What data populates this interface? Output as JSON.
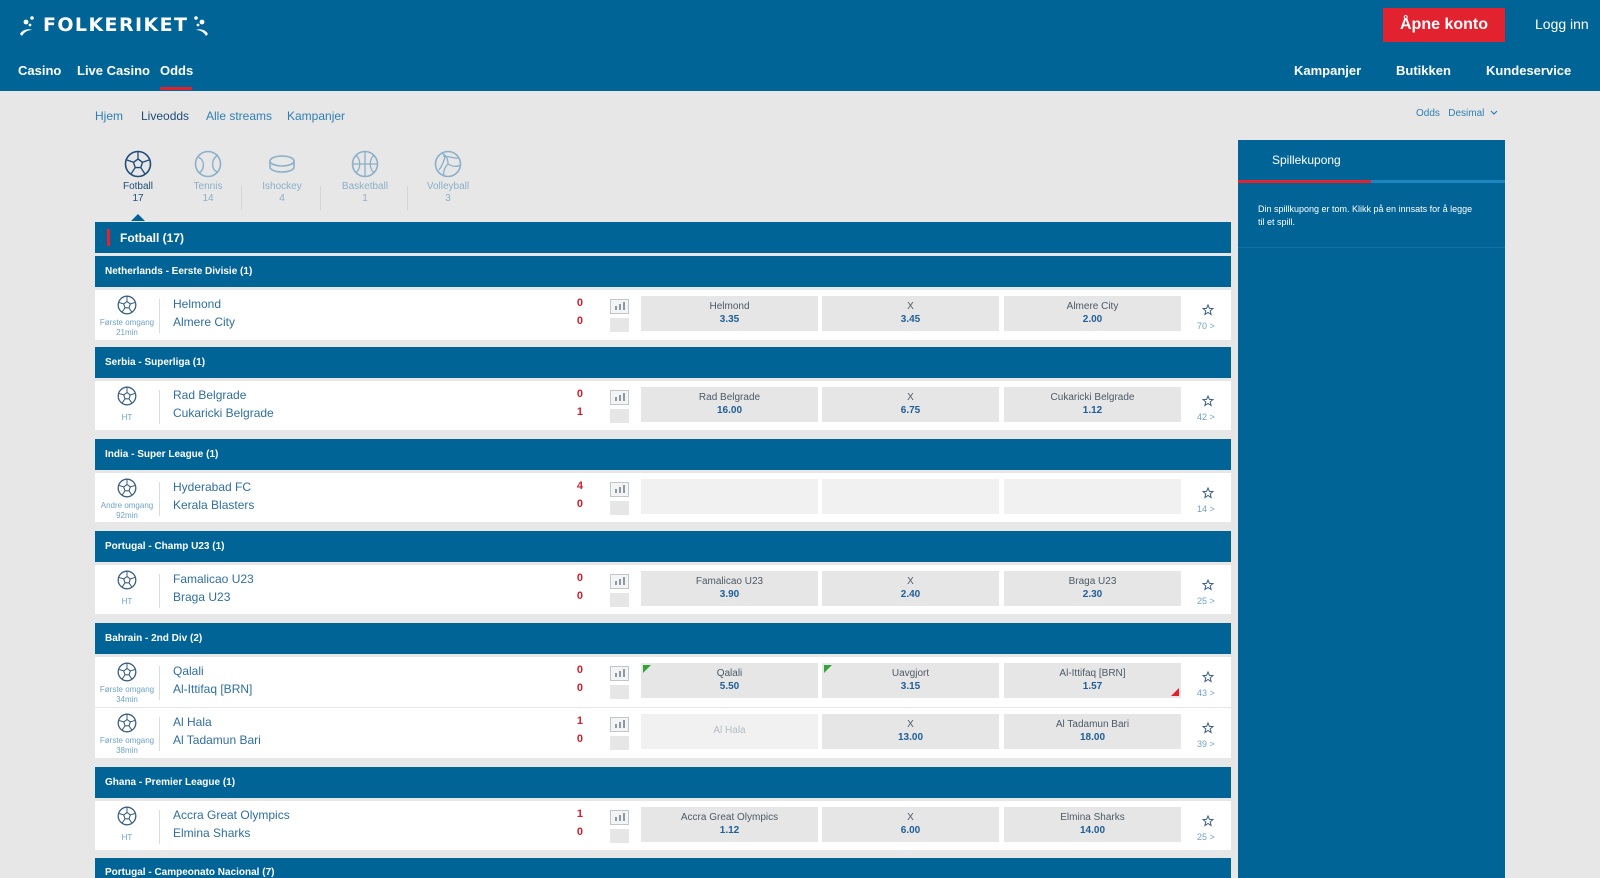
{
  "header": {
    "logo_text": "FOLKERIKET",
    "open_account": "Åpne konto",
    "login": "Logg inn",
    "nav_left": [
      "Casino",
      "Live Casino",
      "Odds"
    ],
    "nav_right": [
      "Kampanjer",
      "Butikken",
      "Kundeservice"
    ],
    "active_nav": "Odds"
  },
  "breadcrumb": [
    "Hjem",
    "Liveodds",
    "Alle streams",
    "Kampanjer"
  ],
  "odds_format": {
    "label": "Odds",
    "value": "Desimal"
  },
  "sports": [
    {
      "name": "Fotball",
      "count": "17",
      "icon": "football-icon",
      "active": true
    },
    {
      "name": "Tennis",
      "count": "14",
      "icon": "tennis-icon"
    },
    {
      "name": "Ishockey",
      "count": "4",
      "icon": "hockey-puck-icon"
    },
    {
      "name": "Basketball",
      "count": "1",
      "icon": "basketball-icon"
    },
    {
      "name": "Volleyball",
      "count": "3",
      "icon": "volleyball-icon"
    }
  ],
  "section_title": "Fotball  (17)",
  "leagues": [
    {
      "name": "Netherlands - Eerste Divisie (1)",
      "matches": [
        {
          "status": "Første omgang",
          "time": "21min",
          "home": "Helmond",
          "away": "Almere City",
          "home_score": "0",
          "away_score": "0",
          "odds": [
            {
              "label": "Helmond",
              "value": "3.35"
            },
            {
              "label": "X",
              "value": "3.45"
            },
            {
              "label": "Almere City",
              "value": "2.00"
            }
          ],
          "markets": "70"
        }
      ]
    },
    {
      "name": "Serbia - Superliga (1)",
      "matches": [
        {
          "status": "HT",
          "time": "",
          "home": "Rad Belgrade",
          "away": "Cukaricki Belgrade",
          "home_score": "0",
          "away_score": "1",
          "odds": [
            {
              "label": "Rad Belgrade",
              "value": "16.00"
            },
            {
              "label": "X",
              "value": "6.75"
            },
            {
              "label": "Cukaricki Belgrade",
              "value": "1.12"
            }
          ],
          "markets": "42"
        }
      ]
    },
    {
      "name": "India - Super League (1)",
      "matches": [
        {
          "status": "Andre omgang",
          "time": "92min",
          "home": "Hyderabad FC",
          "away": "Kerala Blasters",
          "home_score": "4",
          "away_score": "0",
          "odds": [],
          "markets": "14"
        }
      ]
    },
    {
      "name": "Portugal - Champ U23 (1)",
      "matches": [
        {
          "status": "HT",
          "time": "",
          "home": "Famalicao U23",
          "away": "Braga U23",
          "home_score": "0",
          "away_score": "0",
          "odds": [
            {
              "label": "Famalicao U23",
              "value": "3.90"
            },
            {
              "label": "X",
              "value": "2.40"
            },
            {
              "label": "Braga U23",
              "value": "2.30"
            }
          ],
          "markets": "25"
        }
      ]
    },
    {
      "name": "Bahrain - 2nd Div (2)",
      "matches": [
        {
          "status": "Første omgang",
          "time": "34min",
          "home": "Qalali",
          "away": "Al-Ittifaq [BRN]",
          "home_score": "0",
          "away_score": "0",
          "odds": [
            {
              "label": "Qalali",
              "value": "5.50",
              "trend": "up"
            },
            {
              "label": "Uavgjort",
              "value": "3.15",
              "trend": "up"
            },
            {
              "label": "Al-Ittifaq [BRN]",
              "value": "1.57",
              "trend": "down"
            }
          ],
          "markets": "43"
        },
        {
          "status": "Første omgang",
          "time": "38min",
          "home": "Al Hala",
          "away": "Al Tadamun Bari",
          "home_score": "1",
          "away_score": "0",
          "odds": [
            {
              "label": "Al Hala",
              "value": "",
              "disabled": true
            },
            {
              "label": "X",
              "value": "13.00"
            },
            {
              "label": "Al Tadamun Bari",
              "value": "18.00"
            }
          ],
          "markets": "39"
        }
      ]
    },
    {
      "name": "Ghana - Premier League (1)",
      "matches": [
        {
          "status": "HT",
          "time": "",
          "home": "Accra Great Olympics",
          "away": "Elmina Sharks",
          "home_score": "1",
          "away_score": "0",
          "odds": [
            {
              "label": "Accra Great Olympics",
              "value": "1.12"
            },
            {
              "label": "X",
              "value": "6.00"
            },
            {
              "label": "Elmina Sharks",
              "value": "14.00"
            }
          ],
          "markets": "25"
        }
      ]
    },
    {
      "name": "Portugal - Campeonato Nacional (7)",
      "matches": []
    }
  ],
  "betslip": {
    "title": "Spillekupong",
    "empty_message": "Din spillkupong er tom. Klikk på en innsats for å legge til et spill."
  },
  "colors": {
    "brand_blue": "#016497",
    "accent_red": "#e2222f",
    "background": "#e7e7e7",
    "odds_up": "#33a536",
    "odds_down": "#e2222f"
  }
}
